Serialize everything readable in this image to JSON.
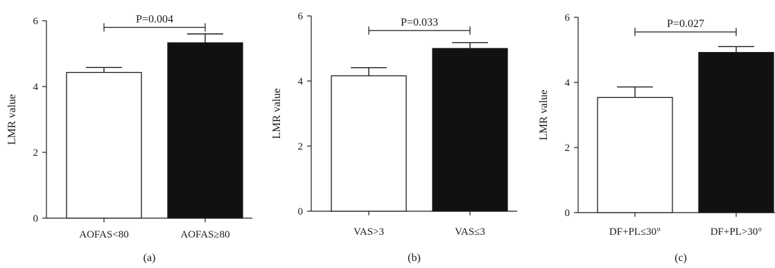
{
  "chart_data": [
    {
      "type": "bar",
      "panel": "(a)",
      "ylabel": "LMR value",
      "ylim": [
        0,
        6
      ],
      "yticks": [
        0,
        2,
        4,
        6
      ],
      "categories": [
        "AOFAS<80",
        "AOFAS≥80"
      ],
      "values": [
        4.43,
        5.33
      ],
      "errors": [
        0.15,
        0.27
      ],
      "bar_colors": [
        "#ffffff",
        "#111111"
      ],
      "p_value": "P=0.004",
      "p_bracket_y": 5.8
    },
    {
      "type": "bar",
      "panel": "(b)",
      "ylabel": "LMR value",
      "ylim": [
        0,
        6
      ],
      "yticks": [
        0,
        2,
        4,
        6
      ],
      "categories": [
        "VAS>3",
        "VAS≤3"
      ],
      "values": [
        4.16,
        5.0
      ],
      "errors": [
        0.25,
        0.18
      ],
      "bar_colors": [
        "#ffffff",
        "#111111"
      ],
      "p_value": "P=0.033",
      "p_bracket_y": 5.55
    },
    {
      "type": "bar",
      "panel": "(c)",
      "ylabel": "LMR value",
      "ylim": [
        0,
        6
      ],
      "yticks": [
        0,
        2,
        4,
        6
      ],
      "categories": [
        "DF+PL≤30°",
        "DF+PL>30°"
      ],
      "values": [
        3.54,
        4.92
      ],
      "errors": [
        0.32,
        0.18
      ],
      "bar_colors": [
        "#ffffff",
        "#111111"
      ],
      "p_value": "P=0.027",
      "p_bracket_y": 5.55
    }
  ]
}
